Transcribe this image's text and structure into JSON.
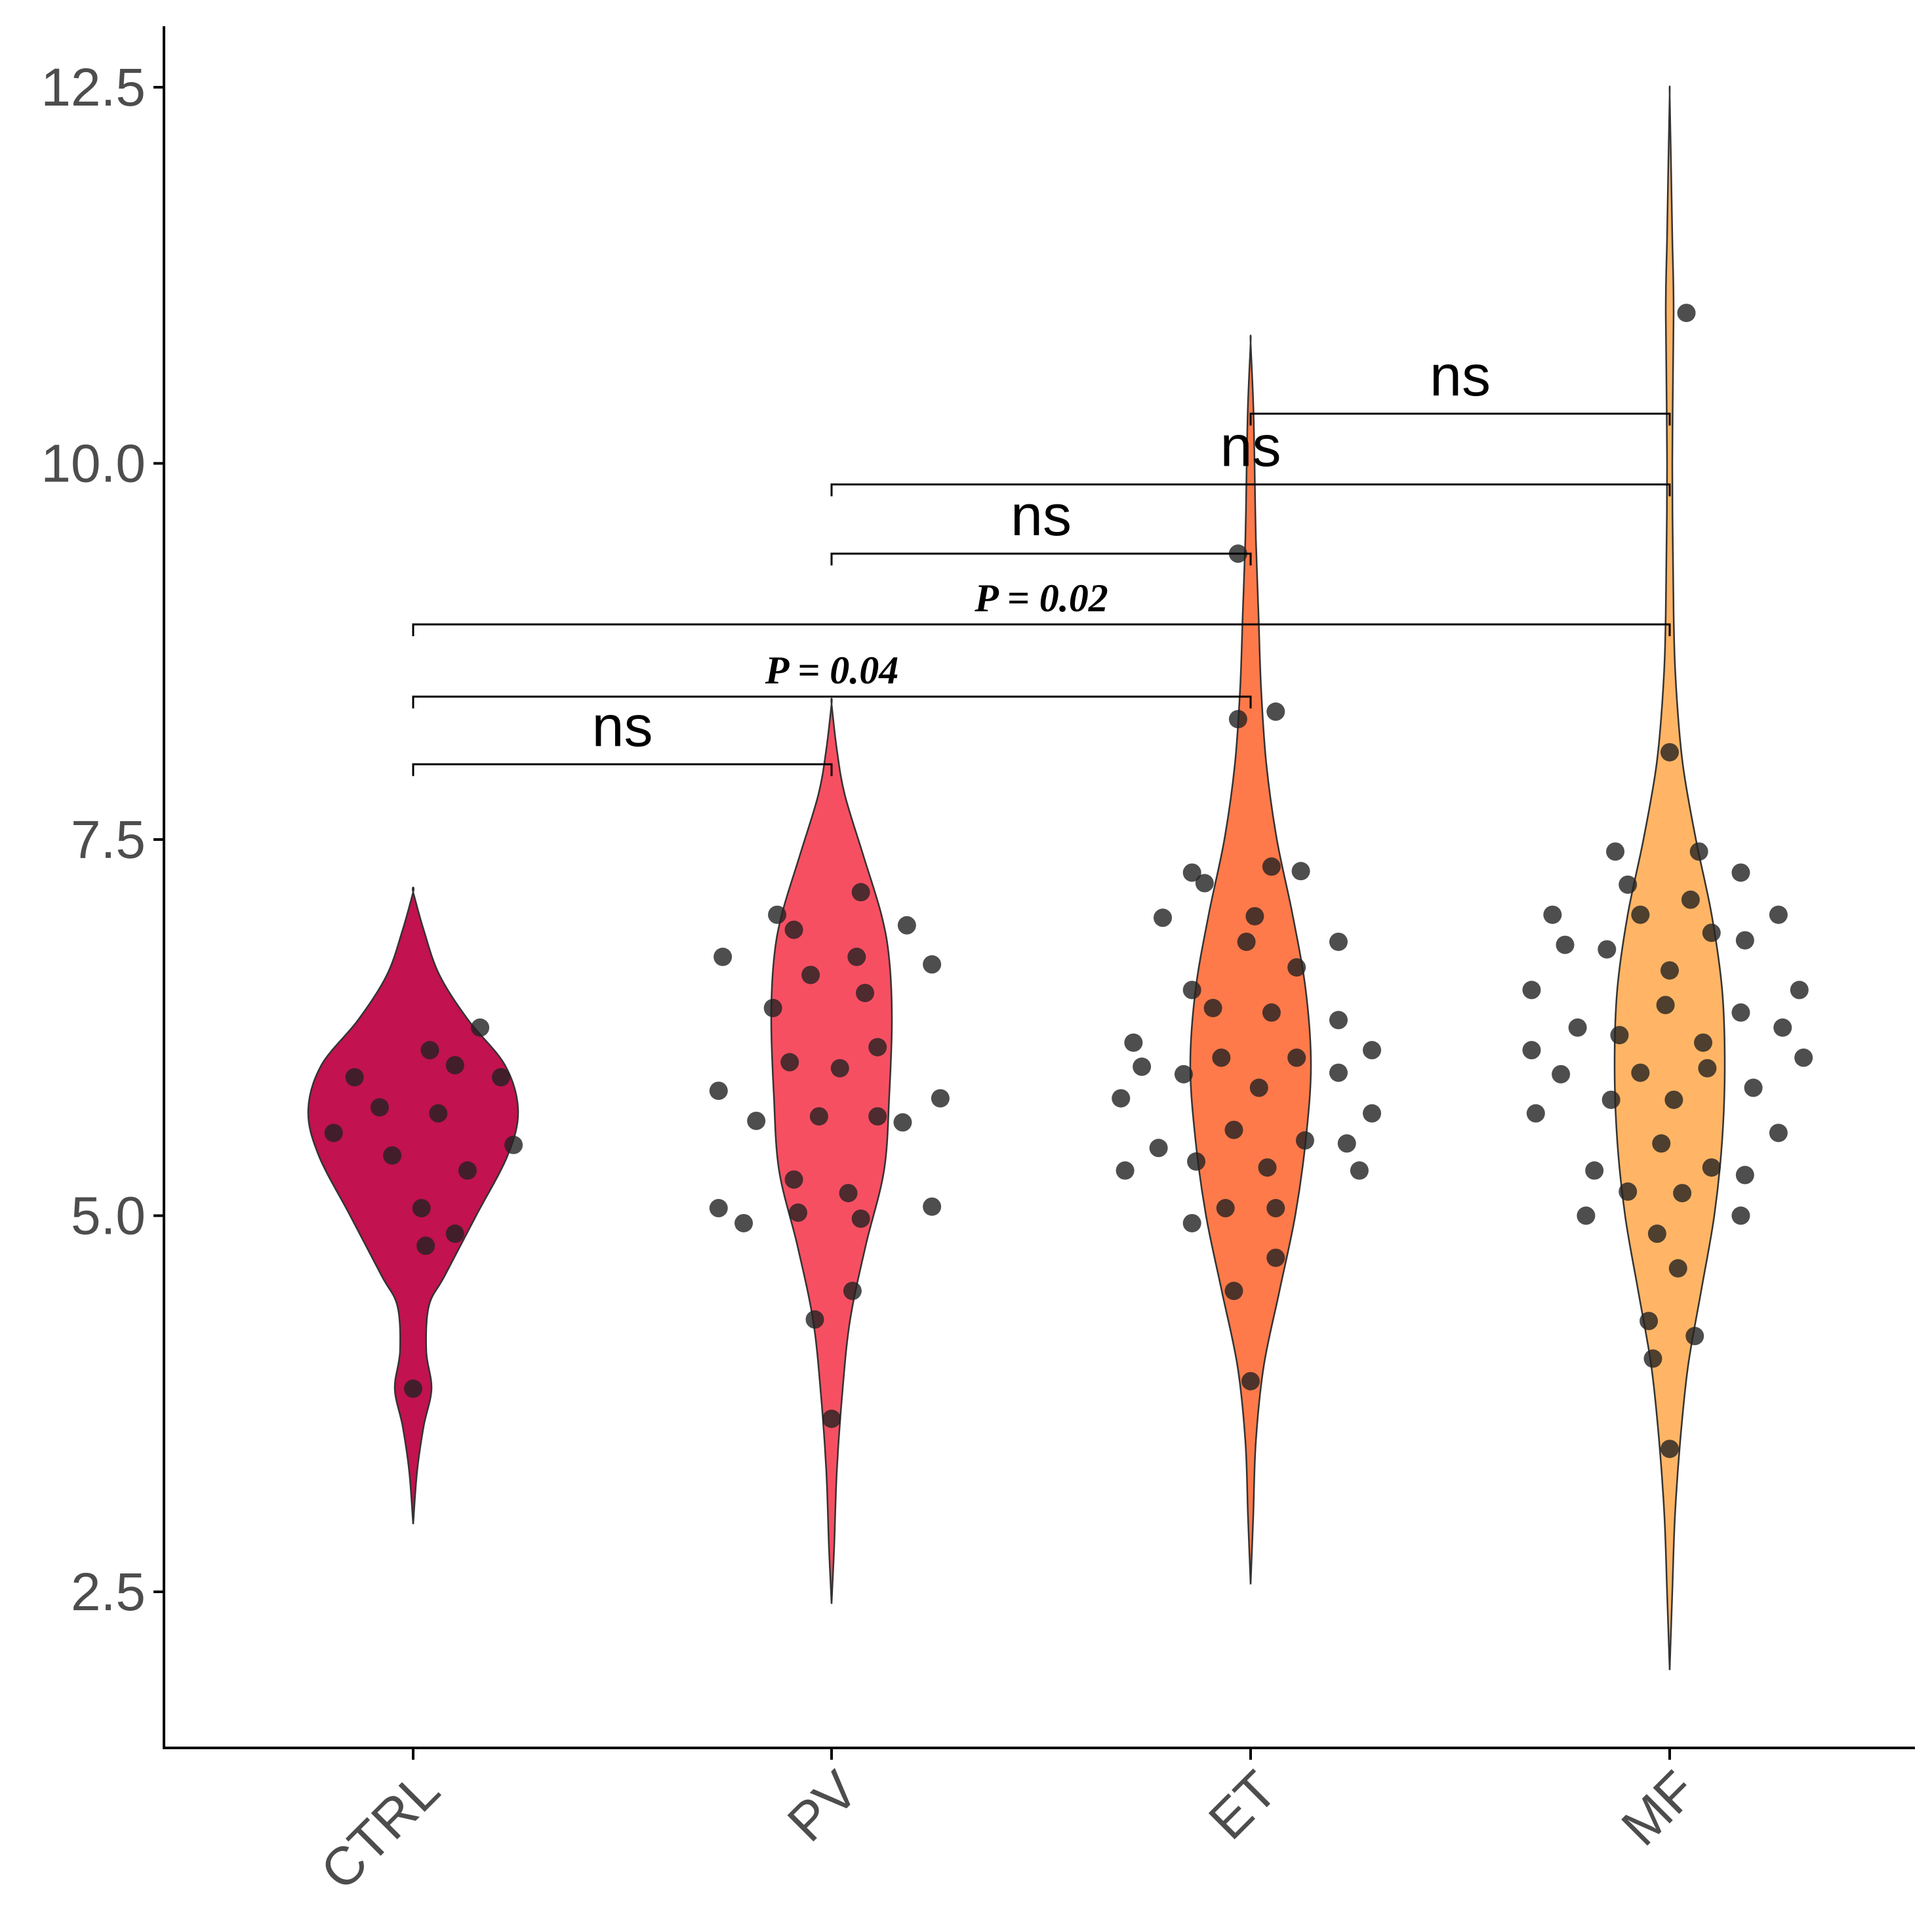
{
  "chart_data": {
    "type": "violin",
    "title": "",
    "xlabel": "",
    "ylabel": "",
    "ylim": [
      1.5,
      12.9
    ],
    "yticks": [
      "2.5",
      "5.0",
      "7.5",
      "10.0",
      "12.5"
    ],
    "ytick_values": [
      2.5,
      5.0,
      7.5,
      10.0,
      12.5
    ],
    "categories": [
      "CTRL",
      "PV",
      "ET",
      "MF"
    ],
    "colors": [
      "#c2124f",
      "#f74f62",
      "#ff7a4a",
      "#ffb565"
    ],
    "violins": [
      {
        "group": "CTRL",
        "profile": [
          [
            2.95,
            0
          ],
          [
            3.3,
            3
          ],
          [
            3.6,
            8
          ],
          [
            3.85,
            14
          ],
          [
            4.1,
            10
          ],
          [
            4.4,
            12
          ],
          [
            4.6,
            24
          ],
          [
            5.0,
            48
          ],
          [
            5.4,
            72
          ],
          [
            5.7,
            80
          ],
          [
            6.0,
            70
          ],
          [
            6.3,
            42
          ],
          [
            6.6,
            20
          ],
          [
            6.9,
            8
          ],
          [
            7.15,
            0
          ]
        ]
      },
      {
        "group": "PV",
        "profile": [
          [
            2.42,
            0
          ],
          [
            2.8,
            2
          ],
          [
            3.3,
            4
          ],
          [
            3.8,
            8
          ],
          [
            4.3,
            14
          ],
          [
            4.8,
            26
          ],
          [
            5.3,
            40
          ],
          [
            5.8,
            44
          ],
          [
            6.3,
            46
          ],
          [
            6.7,
            44
          ],
          [
            7.0,
            38
          ],
          [
            7.4,
            24
          ],
          [
            7.8,
            10
          ],
          [
            8.1,
            4
          ],
          [
            8.4,
            0
          ]
        ]
      },
      {
        "group": "ET",
        "profile": [
          [
            2.55,
            0
          ],
          [
            3.0,
            2
          ],
          [
            3.5,
            4
          ],
          [
            4.0,
            10
          ],
          [
            4.5,
            22
          ],
          [
            5.0,
            34
          ],
          [
            5.5,
            42
          ],
          [
            6.0,
            46
          ],
          [
            6.5,
            42
          ],
          [
            7.0,
            32
          ],
          [
            7.5,
            20
          ],
          [
            8.0,
            12
          ],
          [
            8.5,
            8
          ],
          [
            9.0,
            6
          ],
          [
            9.5,
            4
          ],
          [
            10.0,
            3
          ],
          [
            10.4,
            2
          ],
          [
            10.8,
            0
          ]
        ]
      },
      {
        "group": "MF",
        "profile": [
          [
            1.98,
            0
          ],
          [
            2.5,
            2
          ],
          [
            3.0,
            4
          ],
          [
            3.5,
            8
          ],
          [
            4.0,
            14
          ],
          [
            4.5,
            24
          ],
          [
            5.0,
            34
          ],
          [
            5.5,
            40
          ],
          [
            6.0,
            42
          ],
          [
            6.5,
            40
          ],
          [
            7.0,
            32
          ],
          [
            7.5,
            20
          ],
          [
            8.0,
            10
          ],
          [
            8.5,
            5
          ],
          [
            9.0,
            3
          ],
          [
            10.0,
            2
          ],
          [
            11.0,
            3
          ],
          [
            11.5,
            2
          ],
          [
            12.0,
            1
          ],
          [
            12.45,
            0
          ]
        ]
      }
    ],
    "points": [
      {
        "group": "CTRL",
        "values": [
          [
            -0.19,
            5.55
          ],
          [
            -0.14,
            5.92
          ],
          [
            -0.08,
            5.72
          ],
          [
            -0.05,
            5.4
          ],
          [
            0.02,
            5.05
          ],
          [
            0.03,
            4.8
          ],
          [
            0.06,
            5.68
          ],
          [
            0.04,
            6.1
          ],
          [
            0.1,
            6.0
          ],
          [
            0.13,
            5.3
          ],
          [
            0.1,
            4.88
          ],
          [
            0.16,
            6.25
          ],
          [
            0.21,
            5.92
          ],
          [
            0.24,
            5.47
          ],
          [
            0.0,
            3.85
          ]
        ]
      },
      {
        "group": "PV",
        "values": [
          [
            -0.26,
            6.72
          ],
          [
            -0.27,
            5.83
          ],
          [
            -0.27,
            5.05
          ],
          [
            -0.21,
            4.95
          ],
          [
            -0.18,
            5.63
          ],
          [
            -0.14,
            6.38
          ],
          [
            -0.13,
            7.0
          ],
          [
            -0.09,
            6.9
          ],
          [
            -0.05,
            6.6
          ],
          [
            -0.1,
            6.02
          ],
          [
            -0.09,
            5.24
          ],
          [
            -0.08,
            5.02
          ],
          [
            -0.03,
            5.66
          ],
          [
            0.02,
            5.98
          ],
          [
            0.06,
            6.72
          ],
          [
            0.07,
            7.15
          ],
          [
            0.08,
            6.48
          ],
          [
            0.11,
            6.12
          ],
          [
            0.11,
            5.66
          ],
          [
            0.04,
            5.15
          ],
          [
            0.07,
            4.98
          ],
          [
            0.05,
            4.5
          ],
          [
            -0.04,
            4.31
          ],
          [
            0.0,
            3.65
          ],
          [
            0.18,
            6.93
          ],
          [
            0.17,
            5.62
          ],
          [
            0.24,
            6.67
          ],
          [
            0.26,
            5.78
          ],
          [
            0.24,
            5.06
          ]
        ]
      },
      {
        "group": "ET",
        "values": [
          [
            -0.31,
            5.78
          ],
          [
            -0.3,
            5.3
          ],
          [
            -0.28,
            6.15
          ],
          [
            -0.26,
            5.99
          ],
          [
            -0.22,
            5.45
          ],
          [
            -0.21,
            6.98
          ],
          [
            -0.16,
            5.94
          ],
          [
            -0.14,
            6.5
          ],
          [
            -0.14,
            7.28
          ],
          [
            -0.11,
            7.21
          ],
          [
            -0.13,
            5.36
          ],
          [
            -0.14,
            4.95
          ],
          [
            -0.09,
            6.38
          ],
          [
            -0.07,
            6.05
          ],
          [
            -0.06,
            5.05
          ],
          [
            -0.04,
            5.57
          ],
          [
            -0.04,
            4.5
          ],
          [
            -0.01,
            6.82
          ],
          [
            0.01,
            6.99
          ],
          [
            0.02,
            5.85
          ],
          [
            0.0,
            3.9
          ],
          [
            0.05,
            7.32
          ],
          [
            0.05,
            6.35
          ],
          [
            0.04,
            5.32
          ],
          [
            0.06,
            5.05
          ],
          [
            0.06,
            4.72
          ],
          [
            0.11,
            6.65
          ],
          [
            0.11,
            6.05
          ],
          [
            0.13,
            5.5
          ],
          [
            0.12,
            7.29
          ],
          [
            0.21,
            6.3
          ],
          [
            0.21,
            6.82
          ],
          [
            0.21,
            5.95
          ],
          [
            0.23,
            5.48
          ],
          [
            0.26,
            5.3
          ],
          [
            0.29,
            6.1
          ],
          [
            0.29,
            5.68
          ],
          [
            -0.03,
            8.3
          ],
          [
            0.06,
            8.35
          ],
          [
            -0.03,
            9.4
          ]
        ]
      },
      {
        "group": "MF",
        "values": [
          [
            -0.33,
            6.5
          ],
          [
            -0.33,
            6.1
          ],
          [
            -0.32,
            5.68
          ],
          [
            -0.28,
            7.0
          ],
          [
            -0.26,
            5.94
          ],
          [
            -0.25,
            6.8
          ],
          [
            -0.22,
            6.25
          ],
          [
            -0.2,
            5.0
          ],
          [
            -0.18,
            5.3
          ],
          [
            -0.15,
            6.77
          ],
          [
            -0.14,
            5.77
          ],
          [
            -0.13,
            7.42
          ],
          [
            -0.1,
            7.2
          ],
          [
            -0.1,
            5.16
          ],
          [
            -0.12,
            6.2
          ],
          [
            -0.07,
            5.95
          ],
          [
            -0.07,
            7.0
          ],
          [
            -0.05,
            4.3
          ],
          [
            -0.04,
            4.05
          ],
          [
            -0.03,
            4.88
          ],
          [
            -0.02,
            5.48
          ],
          [
            -0.01,
            6.4
          ],
          [
            0.0,
            6.63
          ],
          [
            0.0,
            8.08
          ],
          [
            0.01,
            5.77
          ],
          [
            0.03,
            5.15
          ],
          [
            0.02,
            4.65
          ],
          [
            0.06,
            4.2
          ],
          [
            0.05,
            7.1
          ],
          [
            0.08,
            6.15
          ],
          [
            0.09,
            5.98
          ],
          [
            0.1,
            5.32
          ],
          [
            0.1,
            6.88
          ],
          [
            0.07,
            7.42
          ],
          [
            0.17,
            7.28
          ],
          [
            0.17,
            6.35
          ],
          [
            0.18,
            6.83
          ],
          [
            0.18,
            5.27
          ],
          [
            0.17,
            5.0
          ],
          [
            0.2,
            5.85
          ],
          [
            0.26,
            5.55
          ],
          [
            0.26,
            7.0
          ],
          [
            0.27,
            6.25
          ],
          [
            0.31,
            6.5
          ],
          [
            0.32,
            6.05
          ],
          [
            0.0,
            3.45
          ],
          [
            0.04,
            11.0
          ]
        ]
      }
    ],
    "comparisons": [
      {
        "from": "CTRL",
        "to": "PV",
        "y": 8.0,
        "label": "ns",
        "style": "ns"
      },
      {
        "from": "CTRL",
        "to": "ET",
        "y": 8.45,
        "label": "P = 0.04",
        "style": "p"
      },
      {
        "from": "CTRL",
        "to": "MF",
        "y": 8.93,
        "label": "P = 0.02",
        "style": "p"
      },
      {
        "from": "PV",
        "to": "ET",
        "y": 9.4,
        "label": "ns",
        "style": "ns"
      },
      {
        "from": "PV",
        "to": "MF",
        "y": 9.86,
        "label": "ns",
        "style": "ns"
      },
      {
        "from": "ET",
        "to": "MF",
        "y": 10.33,
        "label": "ns",
        "style": "ns"
      }
    ]
  }
}
